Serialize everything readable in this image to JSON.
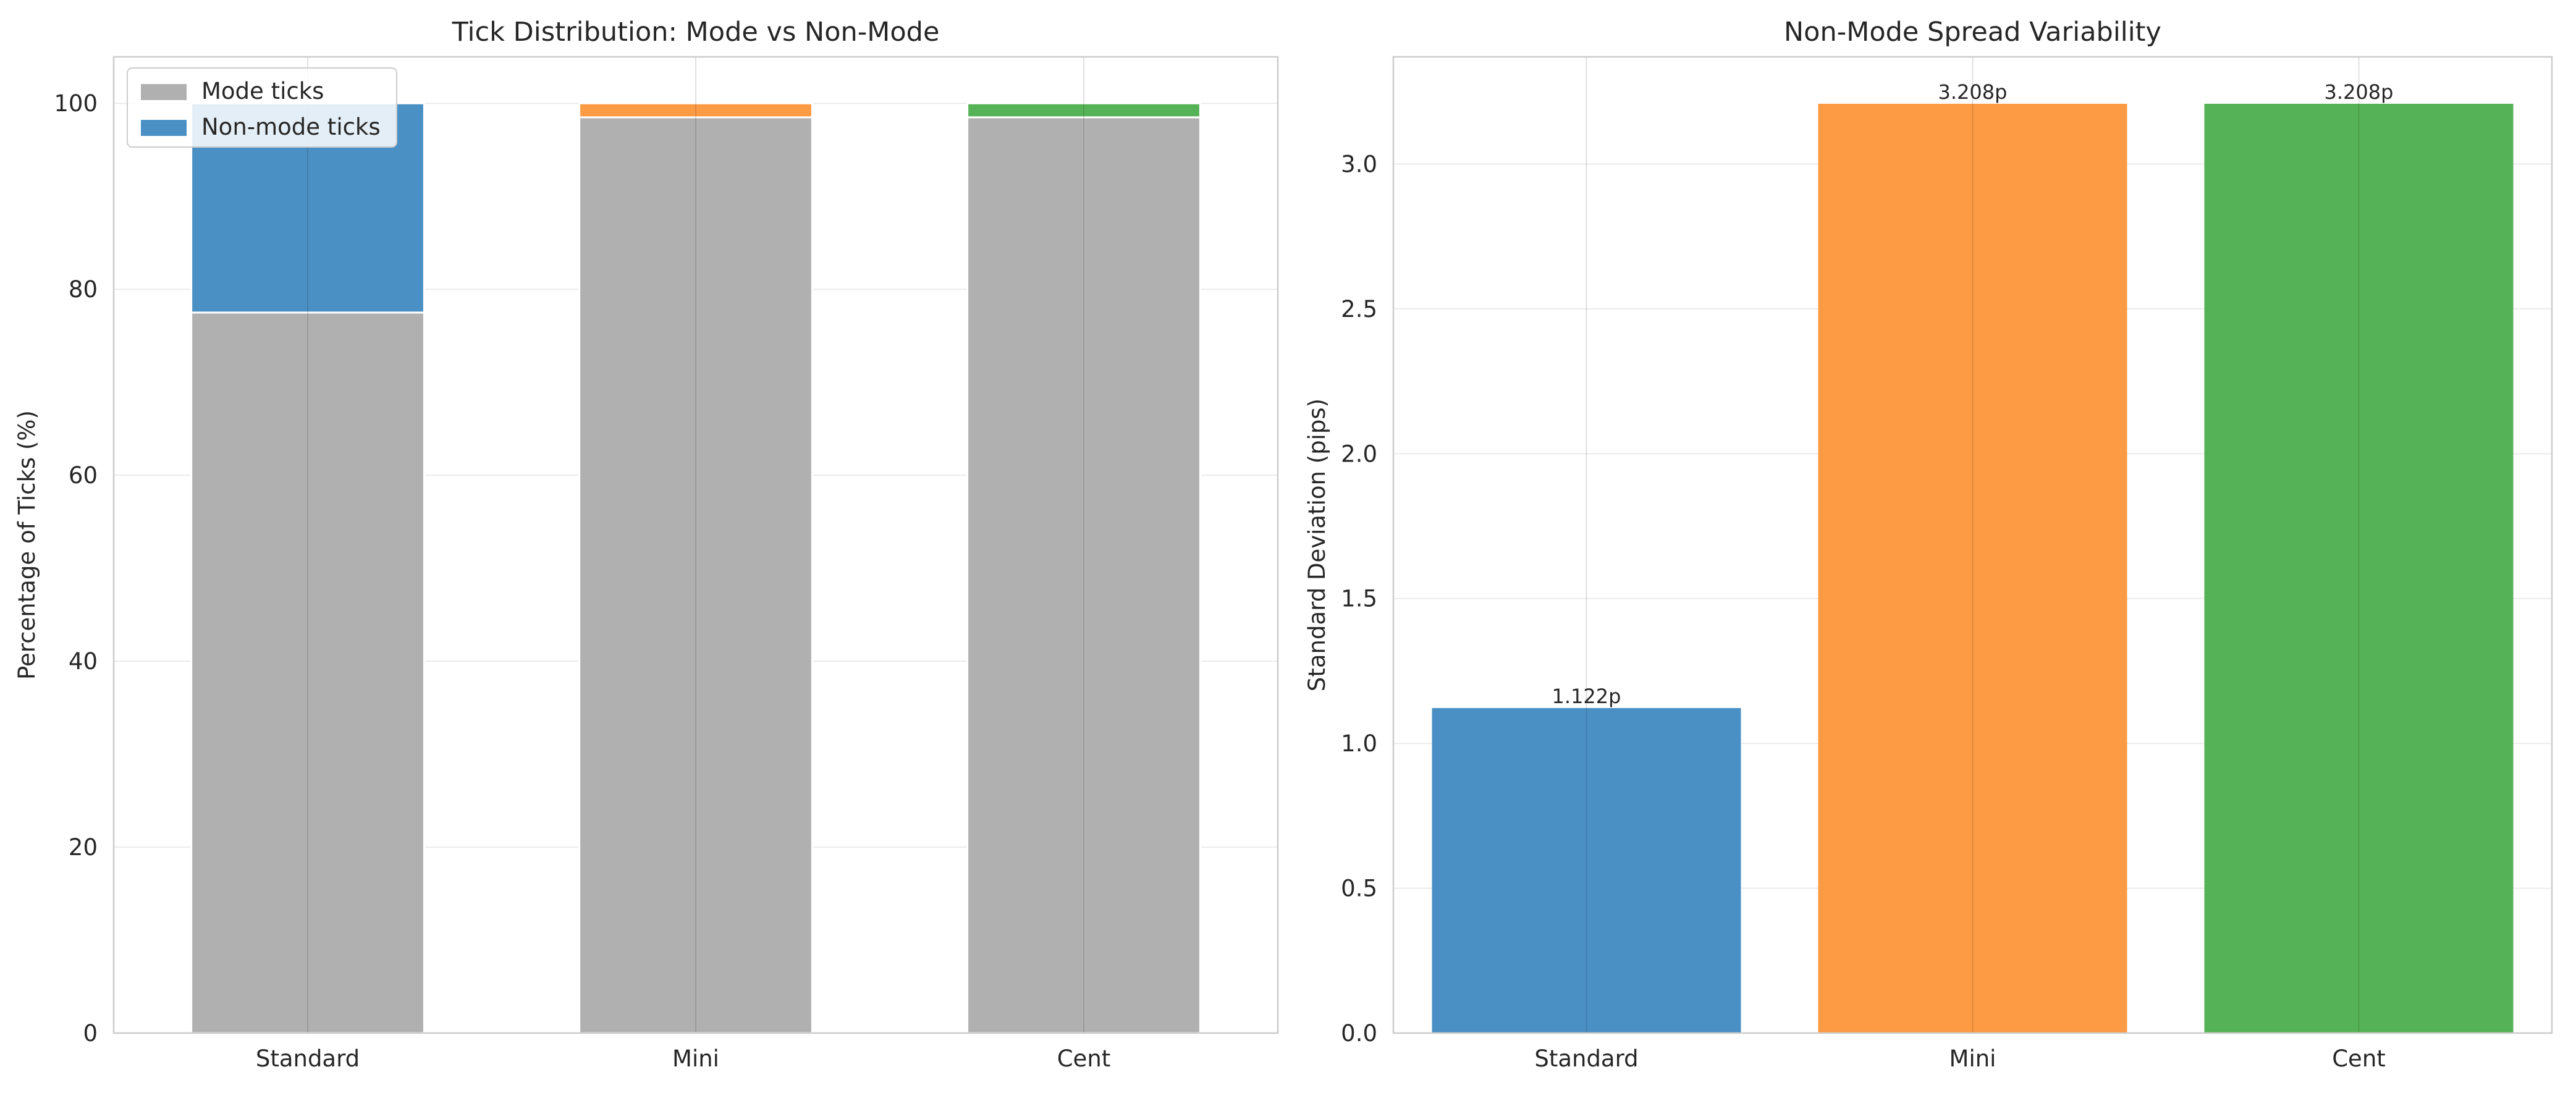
{
  "chart_data": [
    {
      "type": "bar",
      "stacked": true,
      "title": "Tick Distribution: Mode vs Non-Mode",
      "xlabel": "",
      "ylabel": "Percentage of Ticks (%)",
      "categories": [
        "Standard",
        "Mini",
        "Cent"
      ],
      "ylim": [
        0,
        105
      ],
      "yticks": [
        0,
        20,
        40,
        60,
        80,
        100
      ],
      "grid": true,
      "legend": "top-left",
      "series": [
        {
          "name": "Mode ticks",
          "values": [
            77.5,
            98.5,
            98.5
          ],
          "colors": [
            "#b0b0b0",
            "#b0b0b0",
            "#b0b0b0"
          ]
        },
        {
          "name": "Non-mode ticks",
          "values": [
            22.5,
            1.5,
            1.5
          ],
          "colors": [
            "#4a90c4",
            "#fd9a44",
            "#56b256"
          ]
        }
      ],
      "legend_colors": [
        "#b0b0b0",
        "#4a90c4"
      ]
    },
    {
      "type": "bar",
      "title": "Non-Mode Spread Variability",
      "xlabel": "",
      "ylabel": "Standard Deviation (pips)",
      "categories": [
        "Standard",
        "Mini",
        "Cent"
      ],
      "values": [
        1.122,
        3.208,
        3.208
      ],
      "data_labels": [
        "1.122p",
        "3.208p",
        "3.208p"
      ],
      "colors": [
        "#4a90c4",
        "#fd9a44",
        "#56b256"
      ],
      "ylim": [
        0,
        3.37
      ],
      "yticks": [
        0.0,
        0.5,
        1.0,
        1.5,
        2.0,
        2.5,
        3.0
      ],
      "ytick_labels": [
        "0.0",
        "0.5",
        "1.0",
        "1.5",
        "2.0",
        "2.5",
        "3.0"
      ],
      "grid": true
    }
  ]
}
